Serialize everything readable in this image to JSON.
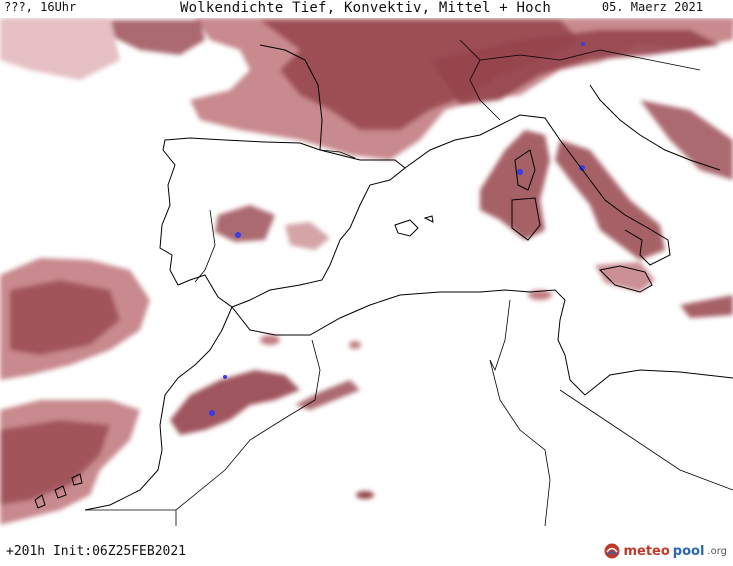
{
  "header": {
    "location": "???, 16Uhr",
    "title": "Wolkendichte  Tief, Konvektiv, Mittel + Hoch",
    "date": "05. Maerz 2021"
  },
  "footer": {
    "run_info": "+201h Init:06Z25FEB2021",
    "logo_primary": "meteo",
    "logo_secondary": "pool",
    "logo_suffix": ".org"
  },
  "map": {
    "variable": "cloud-density",
    "colors": {
      "ocean": "#ffffff",
      "coast": "#000000",
      "cloud_light": "#e2b8bc",
      "cloud_mid": "#c27d82",
      "cloud_dark": "#96444c",
      "convective": "#3a3ae6",
      "logo_red": "#c0392b",
      "logo_blue": "#2a66b6"
    }
  }
}
